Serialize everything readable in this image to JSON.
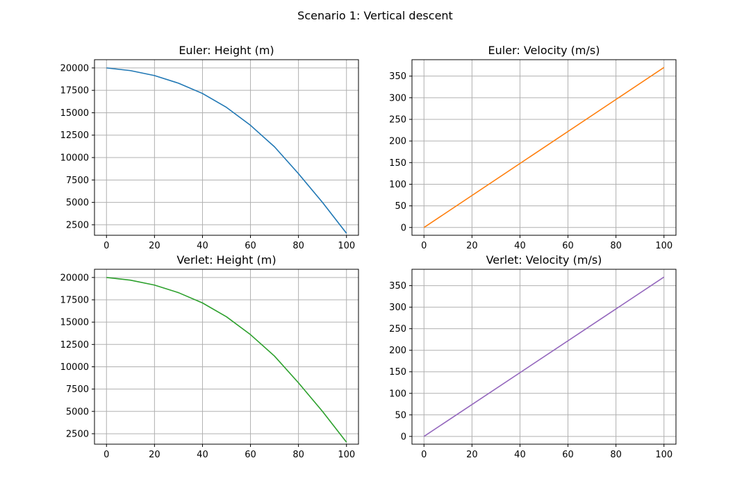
{
  "figure": {
    "suptitle": "Scenario 1: Vertical descent"
  },
  "colors": {
    "grid": "#b0b0b0",
    "axes": "#000000",
    "background": "#ffffff"
  },
  "chart_data": [
    {
      "type": "line",
      "title": "Euler: Height (m)",
      "xlabel": "",
      "ylabel": "",
      "grid": true,
      "xlim": [
        -5,
        105
      ],
      "ylim": [
        1330,
        20920
      ],
      "xticks": [
        0,
        20,
        40,
        60,
        80,
        100
      ],
      "xtick_labels": [
        "0",
        "20",
        "40",
        "60",
        "80",
        "100"
      ],
      "yticks": [
        2500,
        5000,
        7500,
        10000,
        12500,
        15000,
        17500,
        20000
      ],
      "ytick_labels": [
        "2500",
        "5000",
        "7500",
        "10000",
        "12500",
        "15000",
        "17500",
        "20000"
      ],
      "series": [
        {
          "color": "#1f77b4",
          "x": [
            0,
            10,
            20,
            30,
            40,
            50,
            60,
            70,
            80,
            90,
            100
          ],
          "y": [
            20000,
            19700,
            19150,
            18300,
            17150,
            15600,
            13600,
            11200,
            8200,
            5000,
            1550
          ]
        }
      ]
    },
    {
      "type": "line",
      "title": "Euler: Velocity (m/s)",
      "xlabel": "",
      "ylabel": "",
      "grid": true,
      "xlim": [
        -5,
        105
      ],
      "ylim": [
        -18,
        388
      ],
      "xticks": [
        0,
        20,
        40,
        60,
        80,
        100
      ],
      "xtick_labels": [
        "0",
        "20",
        "40",
        "60",
        "80",
        "100"
      ],
      "yticks": [
        0,
        50,
        100,
        150,
        200,
        250,
        300,
        350
      ],
      "ytick_labels": [
        "0",
        "50",
        "100",
        "150",
        "200",
        "250",
        "300",
        "350"
      ],
      "series": [
        {
          "color": "#ff7f0e",
          "x": [
            0,
            100
          ],
          "y": [
            0,
            370
          ]
        }
      ]
    },
    {
      "type": "line",
      "title": "Verlet: Height (m)",
      "xlabel": "",
      "ylabel": "",
      "grid": true,
      "xlim": [
        -5,
        105
      ],
      "ylim": [
        1330,
        20920
      ],
      "xticks": [
        0,
        20,
        40,
        60,
        80,
        100
      ],
      "xtick_labels": [
        "0",
        "20",
        "40",
        "60",
        "80",
        "100"
      ],
      "yticks": [
        2500,
        5000,
        7500,
        10000,
        12500,
        15000,
        17500,
        20000
      ],
      "ytick_labels": [
        "2500",
        "5000",
        "7500",
        "10000",
        "12500",
        "15000",
        "17500",
        "20000"
      ],
      "series": [
        {
          "color": "#2ca02c",
          "x": [
            0,
            10,
            20,
            30,
            40,
            50,
            60,
            70,
            80,
            90,
            100
          ],
          "y": [
            20000,
            19700,
            19150,
            18300,
            17150,
            15600,
            13600,
            11200,
            8200,
            5000,
            1550
          ]
        }
      ]
    },
    {
      "type": "line",
      "title": "Verlet: Velocity (m/s)",
      "xlabel": "",
      "ylabel": "",
      "grid": true,
      "xlim": [
        -5,
        105
      ],
      "ylim": [
        -18,
        388
      ],
      "xticks": [
        0,
        20,
        40,
        60,
        80,
        100
      ],
      "xtick_labels": [
        "0",
        "20",
        "40",
        "60",
        "80",
        "100"
      ],
      "yticks": [
        0,
        50,
        100,
        150,
        200,
        250,
        300,
        350
      ],
      "ytick_labels": [
        "0",
        "50",
        "100",
        "150",
        "200",
        "250",
        "300",
        "350"
      ],
      "series": [
        {
          "color": "#9467bd",
          "x": [
            0,
            100
          ],
          "y": [
            0,
            370
          ]
        }
      ]
    }
  ]
}
